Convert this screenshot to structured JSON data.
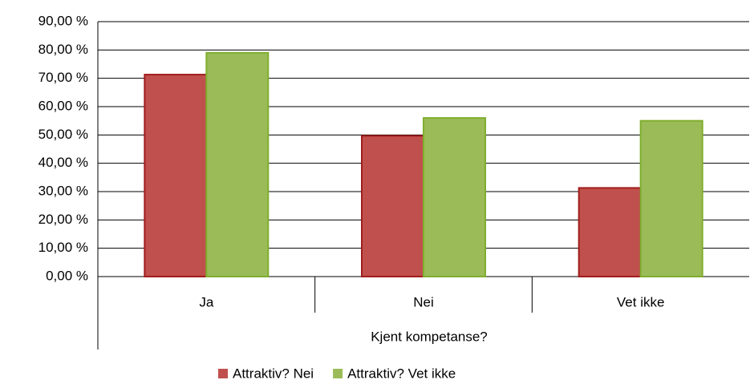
{
  "chart_data": {
    "type": "bar",
    "x_label": "Kjent kompetanse?",
    "categories": [
      "Ja",
      "Nei",
      "Vet ikke"
    ],
    "series": [
      {
        "name": "Attraktiv? Nei",
        "color": "#c0504d",
        "values": [
          71.3,
          49.7,
          31.3
        ]
      },
      {
        "name": "Attraktiv? Vet ikke",
        "color": "#9bbb59",
        "values": [
          79.0,
          56.0,
          55.0
        ]
      }
    ],
    "ylim": [
      0,
      90
    ],
    "yticks": [
      {
        "value": 0,
        "label": "0,00 %"
      },
      {
        "value": 10,
        "label": "10,00 %"
      },
      {
        "value": 20,
        "label": "20,00 %"
      },
      {
        "value": 30,
        "label": "30,00 %"
      },
      {
        "value": 40,
        "label": "40,00 %"
      },
      {
        "value": 50,
        "label": "50,00 %"
      },
      {
        "value": 60,
        "label": "60,00 %"
      },
      {
        "value": 70,
        "label": "70,00 %"
      },
      {
        "value": 80,
        "label": "80,00 %"
      },
      {
        "value": 90,
        "label": "90,00 %"
      }
    ],
    "grid": true,
    "legend": "bottom"
  }
}
